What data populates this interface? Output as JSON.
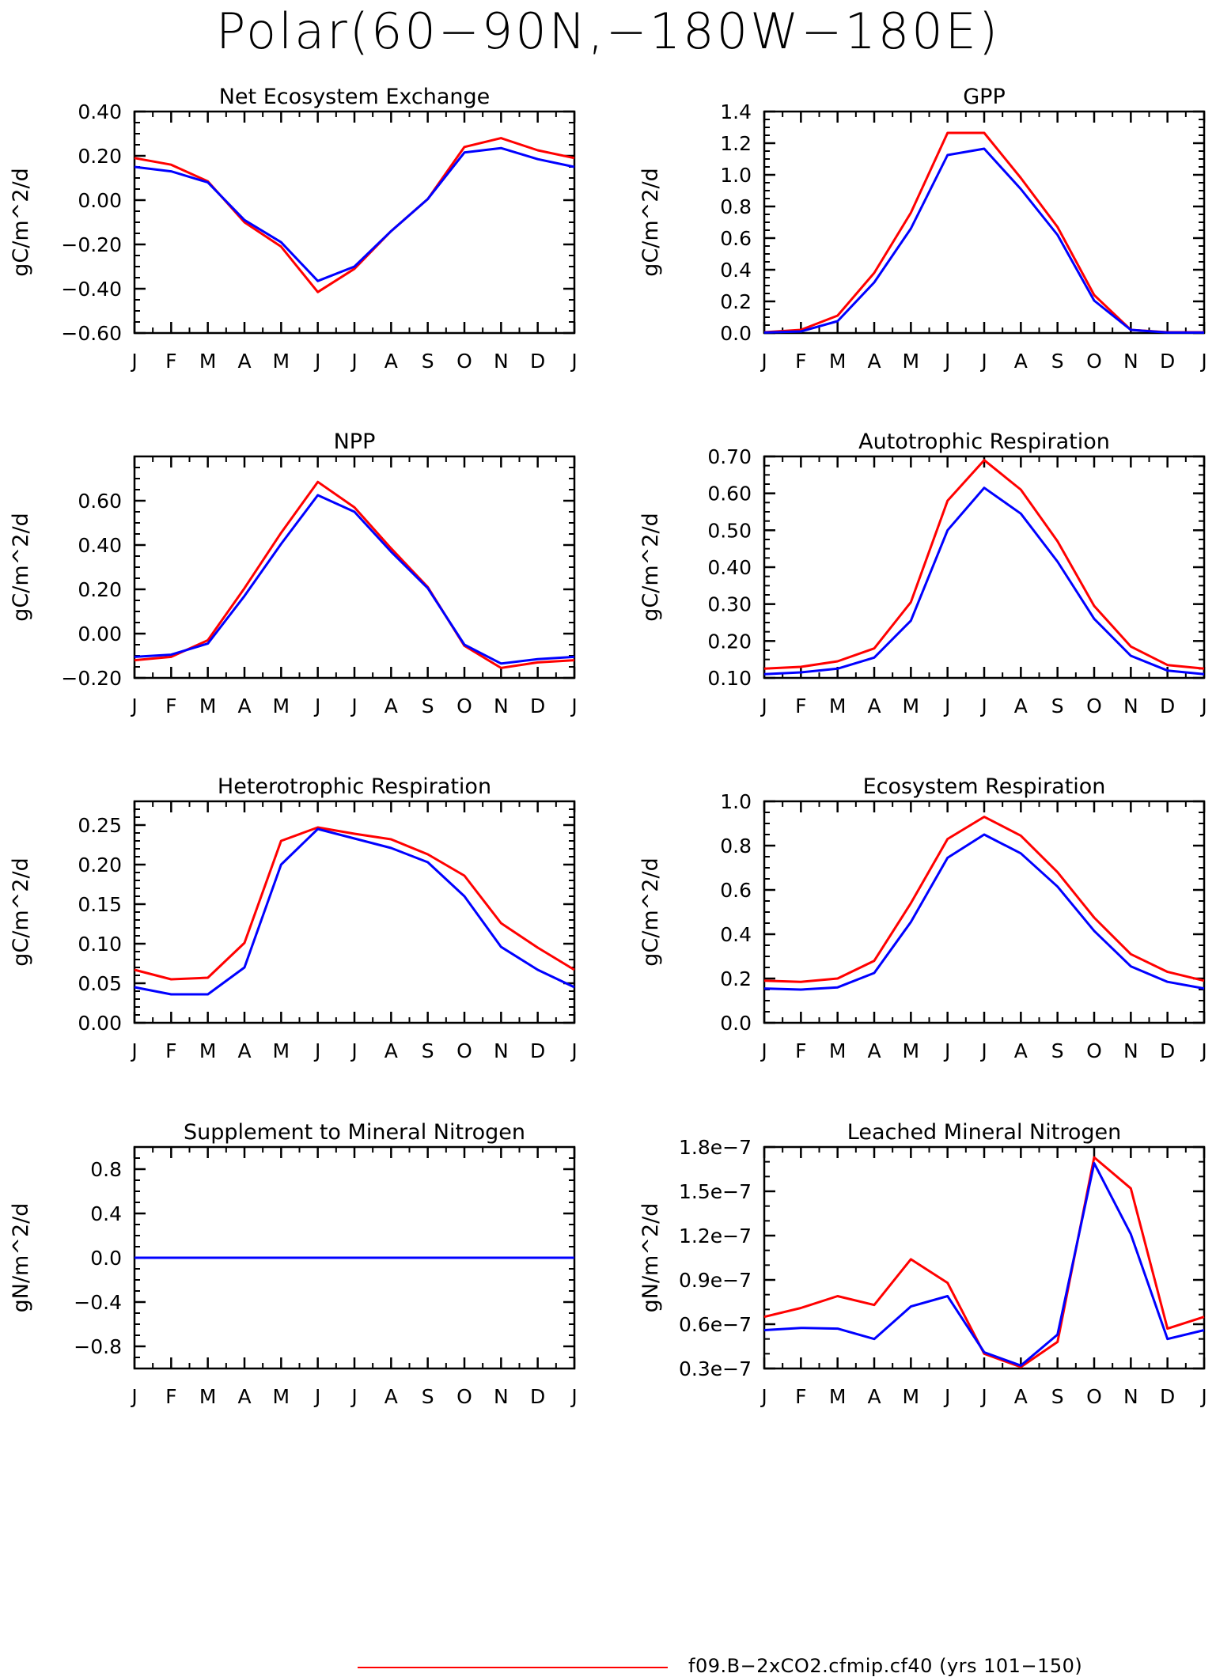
{
  "figure": {
    "title": "Polar(60−90N,−180W−180E)",
    "legend": [
      {
        "label": "f09.B−2xCO2.cfmip.cf40 (yrs 101−150)",
        "color": "#ff0000"
      }
    ]
  },
  "month_labels": [
    "J",
    "F",
    "M",
    "A",
    "M",
    "J",
    "J",
    "A",
    "S",
    "O",
    "N",
    "D",
    "J"
  ],
  "colors": {
    "red": "#ff0000",
    "blue": "#0000ff"
  },
  "chart_data": [
    {
      "type": "line",
      "title": "Net Ecosystem Exchange",
      "ylabel": "gC/m^2/d",
      "ylim": [
        -0.6,
        0.4
      ],
      "yticks": [
        -0.6,
        -0.4,
        -0.2,
        0.0,
        0.2,
        0.4
      ],
      "yticklabels": [
        "−0.60",
        "−0.40",
        "−0.20",
        "0.00",
        "0.20",
        "0.40"
      ],
      "yminor": 0.05,
      "series": [
        {
          "color": "#ff0000",
          "values": [
            0.19,
            0.16,
            0.085,
            -0.1,
            -0.21,
            -0.415,
            -0.31,
            -0.14,
            0.005,
            0.24,
            0.28,
            0.225,
            0.19
          ]
        },
        {
          "color": "#0000ff",
          "values": [
            0.15,
            0.13,
            0.08,
            -0.09,
            -0.19,
            -0.365,
            -0.3,
            -0.14,
            0.005,
            0.215,
            0.235,
            0.185,
            0.15
          ]
        }
      ]
    },
    {
      "type": "line",
      "title": "GPP",
      "ylabel": "gC/m^2/d",
      "ylim": [
        0.0,
        1.4
      ],
      "yticks": [
        0.0,
        0.2,
        0.4,
        0.6,
        0.8,
        1.0,
        1.2,
        1.4
      ],
      "yticklabels": [
        "0.0",
        "0.2",
        "0.4",
        "0.6",
        "0.8",
        "1.0",
        "1.2",
        "1.4"
      ],
      "yminor": 0.05,
      "series": [
        {
          "color": "#ff0000",
          "values": [
            0.005,
            0.02,
            0.11,
            0.38,
            0.76,
            1.265,
            1.265,
            0.98,
            0.67,
            0.24,
            0.02,
            0.005,
            0.005
          ]
        },
        {
          "color": "#0000ff",
          "values": [
            0.003,
            0.01,
            0.075,
            0.32,
            0.66,
            1.125,
            1.165,
            0.91,
            0.62,
            0.205,
            0.02,
            0.003,
            0.003
          ]
        }
      ]
    },
    {
      "type": "line",
      "title": "NPP",
      "ylabel": "gC/m^2/d",
      "ylim": [
        -0.2,
        0.8
      ],
      "yticks": [
        -0.2,
        0.0,
        0.2,
        0.4,
        0.6
      ],
      "yticklabels": [
        "−0.20",
        "0.00",
        "0.20",
        "0.40",
        "0.60"
      ],
      "yminor": 0.05,
      "series": [
        {
          "color": "#ff0000",
          "values": [
            -0.12,
            -0.105,
            -0.03,
            0.205,
            0.455,
            0.685,
            0.57,
            0.385,
            0.21,
            -0.055,
            -0.155,
            -0.13,
            -0.12
          ]
        },
        {
          "color": "#0000ff",
          "values": [
            -0.105,
            -0.095,
            -0.045,
            0.17,
            0.405,
            0.625,
            0.55,
            0.37,
            0.205,
            -0.05,
            -0.135,
            -0.115,
            -0.105
          ]
        }
      ]
    },
    {
      "type": "line",
      "title": "Autotrophic Respiration",
      "ylabel": "gC/m^2/d",
      "ylim": [
        0.1,
        0.7
      ],
      "yticks": [
        0.1,
        0.2,
        0.3,
        0.4,
        0.5,
        0.6,
        0.7
      ],
      "yticklabels": [
        "0.10",
        "0.20",
        "0.30",
        "0.40",
        "0.50",
        "0.60",
        "0.70"
      ],
      "yminor": 0.025,
      "series": [
        {
          "color": "#ff0000",
          "values": [
            0.125,
            0.13,
            0.145,
            0.18,
            0.305,
            0.58,
            0.69,
            0.61,
            0.47,
            0.295,
            0.185,
            0.135,
            0.125
          ]
        },
        {
          "color": "#0000ff",
          "values": [
            0.11,
            0.115,
            0.125,
            0.155,
            0.255,
            0.5,
            0.615,
            0.545,
            0.415,
            0.26,
            0.16,
            0.12,
            0.11
          ]
        }
      ]
    },
    {
      "type": "line",
      "title": "Heterotrophic Respiration",
      "ylabel": "gC/m^2/d",
      "ylim": [
        0.0,
        0.28
      ],
      "yticks": [
        0.0,
        0.05,
        0.1,
        0.15,
        0.2,
        0.25
      ],
      "yticklabels": [
        "0.00",
        "0.05",
        "0.10",
        "0.15",
        "0.20",
        "0.25"
      ],
      "yminor": 0.01,
      "series": [
        {
          "color": "#ff0000",
          "values": [
            0.067,
            0.055,
            0.057,
            0.101,
            0.23,
            0.247,
            0.239,
            0.232,
            0.213,
            0.186,
            0.126,
            0.095,
            0.067
          ]
        },
        {
          "color": "#0000ff",
          "values": [
            0.045,
            0.036,
            0.036,
            0.07,
            0.2,
            0.245,
            0.233,
            0.221,
            0.203,
            0.16,
            0.096,
            0.067,
            0.045
          ]
        }
      ]
    },
    {
      "type": "line",
      "title": "Ecosystem Respiration",
      "ylabel": "gC/m^2/d",
      "ylim": [
        0.0,
        1.0
      ],
      "yticks": [
        0.0,
        0.2,
        0.4,
        0.6,
        0.8,
        1.0
      ],
      "yticklabels": [
        "0.0",
        "0.2",
        "0.4",
        "0.6",
        "0.8",
        "1.0"
      ],
      "yminor": 0.05,
      "series": [
        {
          "color": "#ff0000",
          "values": [
            0.19,
            0.185,
            0.2,
            0.28,
            0.54,
            0.83,
            0.93,
            0.845,
            0.68,
            0.475,
            0.31,
            0.23,
            0.19
          ]
        },
        {
          "color": "#0000ff",
          "values": [
            0.155,
            0.15,
            0.16,
            0.225,
            0.455,
            0.745,
            0.85,
            0.765,
            0.615,
            0.415,
            0.255,
            0.185,
            0.155
          ]
        }
      ]
    },
    {
      "type": "line",
      "title": "Supplement to Mineral Nitrogen",
      "ylabel": "gN/m^2/d",
      "ylim": [
        -1.0,
        1.0
      ],
      "yticks": [
        -0.8,
        -0.4,
        0.0,
        0.4,
        0.8
      ],
      "yticklabels": [
        "−0.8",
        "−0.4",
        "0.0",
        "0.4",
        "0.8"
      ],
      "yminor": 0.1,
      "series": [
        {
          "color": "#ff0000",
          "values": [
            0,
            0,
            0,
            0,
            0,
            0,
            0,
            0,
            0,
            0,
            0,
            0,
            0
          ]
        },
        {
          "color": "#0000ff",
          "values": [
            0,
            0,
            0,
            0,
            0,
            0,
            0,
            0,
            0,
            0,
            0,
            0,
            0
          ]
        }
      ]
    },
    {
      "type": "line",
      "title": "Leached Mineral Nitrogen",
      "ylabel": "gN/m^2/d",
      "ylim": [
        3e-08,
        1.8e-07
      ],
      "yticks": [
        3e-08,
        6e-08,
        9e-08,
        1.2e-07,
        1.5e-07,
        1.8e-07
      ],
      "yticklabels": [
        "0.3e−7",
        "0.6e−7",
        "0.9e−7",
        "1.2e−7",
        "1.5e−7",
        "1.8e−7"
      ],
      "yminor": 1e-08,
      "series": [
        {
          "color": "#ff0000",
          "values": [
            6.5e-08,
            7.1e-08,
            7.9e-08,
            7.3e-08,
            1.04e-07,
            8.8e-08,
            4e-08,
            3.1e-08,
            4.8e-08,
            1.73e-07,
            1.52e-07,
            5.7e-08,
            6.5e-08
          ]
        },
        {
          "color": "#0000ff",
          "values": [
            5.6e-08,
            5.75e-08,
            5.7e-08,
            5e-08,
            7.2e-08,
            7.9e-08,
            4.1e-08,
            3.2e-08,
            5.3e-08,
            1.69e-07,
            1.21e-07,
            5e-08,
            5.6e-08
          ]
        }
      ]
    }
  ]
}
